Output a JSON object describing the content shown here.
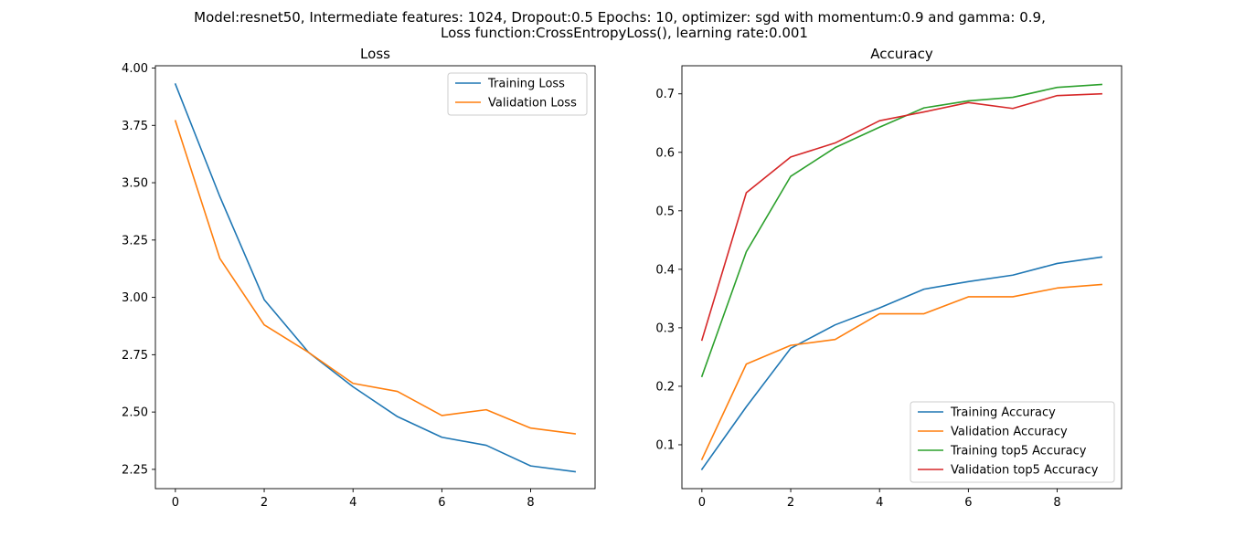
{
  "suptitle": {
    "line1": "Model:resnet50, Intermediate features: 1024, Dropout:0.5 Epochs: 10, optimizer: sgd with momentum:0.9 and gamma: 0.9,",
    "line2": "Loss function:CrossEntropyLoss(), learning rate:0.001"
  },
  "chart_data": [
    {
      "type": "line",
      "title": "Loss",
      "xlabel": "",
      "ylabel": "",
      "xlim": [
        -0.45,
        9.45
      ],
      "ylim": [
        2.166,
        4.01
      ],
      "xticks": [
        0,
        2,
        4,
        6,
        8
      ],
      "yticks": [
        2.25,
        2.5,
        2.75,
        3.0,
        3.25,
        3.5,
        3.75,
        4.0
      ],
      "ytick_labels": [
        "2.25",
        "2.50",
        "2.75",
        "3.00",
        "3.25",
        "3.50",
        "3.75",
        "4.00"
      ],
      "grid": false,
      "legend": "upper right",
      "x": [
        0,
        1,
        2,
        3,
        4,
        5,
        6,
        7,
        8,
        9
      ],
      "series": [
        {
          "name": "Training Loss",
          "color": "#1f77b4",
          "values": [
            3.93,
            3.44,
            2.99,
            2.76,
            2.61,
            2.48,
            2.39,
            2.355,
            2.265,
            2.24
          ]
        },
        {
          "name": "Validation Loss",
          "color": "#ff7f0e",
          "values": [
            3.77,
            3.17,
            2.88,
            2.76,
            2.625,
            2.59,
            2.485,
            2.51,
            2.43,
            2.405
          ]
        }
      ]
    },
    {
      "type": "line",
      "title": "Accuracy",
      "xlabel": "",
      "ylabel": "",
      "xlim": [
        -0.45,
        9.45
      ],
      "ylim": [
        0.025,
        0.748
      ],
      "xticks": [
        0,
        2,
        4,
        6,
        8
      ],
      "yticks": [
        0.1,
        0.2,
        0.3,
        0.4,
        0.5,
        0.6,
        0.7
      ],
      "ytick_labels": [
        "0.1",
        "0.2",
        "0.3",
        "0.4",
        "0.5",
        "0.6",
        "0.7"
      ],
      "grid": false,
      "legend": "lower right",
      "x": [
        0,
        1,
        2,
        3,
        4,
        5,
        6,
        7,
        8,
        9
      ],
      "series": [
        {
          "name": "Training Accuracy",
          "color": "#1f77b4",
          "values": [
            0.058,
            0.165,
            0.265,
            0.305,
            0.334,
            0.366,
            0.379,
            0.39,
            0.41,
            0.421
          ]
        },
        {
          "name": "Validation Accuracy",
          "color": "#ff7f0e",
          "values": [
            0.075,
            0.238,
            0.27,
            0.28,
            0.324,
            0.324,
            0.353,
            0.353,
            0.368,
            0.374
          ]
        },
        {
          "name": "Training top5 Accuracy",
          "color": "#2ca02c",
          "values": [
            0.217,
            0.43,
            0.559,
            0.608,
            0.643,
            0.676,
            0.688,
            0.694,
            0.711,
            0.716
          ]
        },
        {
          "name": "Validation top5 Accuracy",
          "color": "#d62728",
          "values": [
            0.279,
            0.531,
            0.592,
            0.616,
            0.654,
            0.669,
            0.685,
            0.675,
            0.697,
            0.7
          ]
        }
      ]
    }
  ]
}
